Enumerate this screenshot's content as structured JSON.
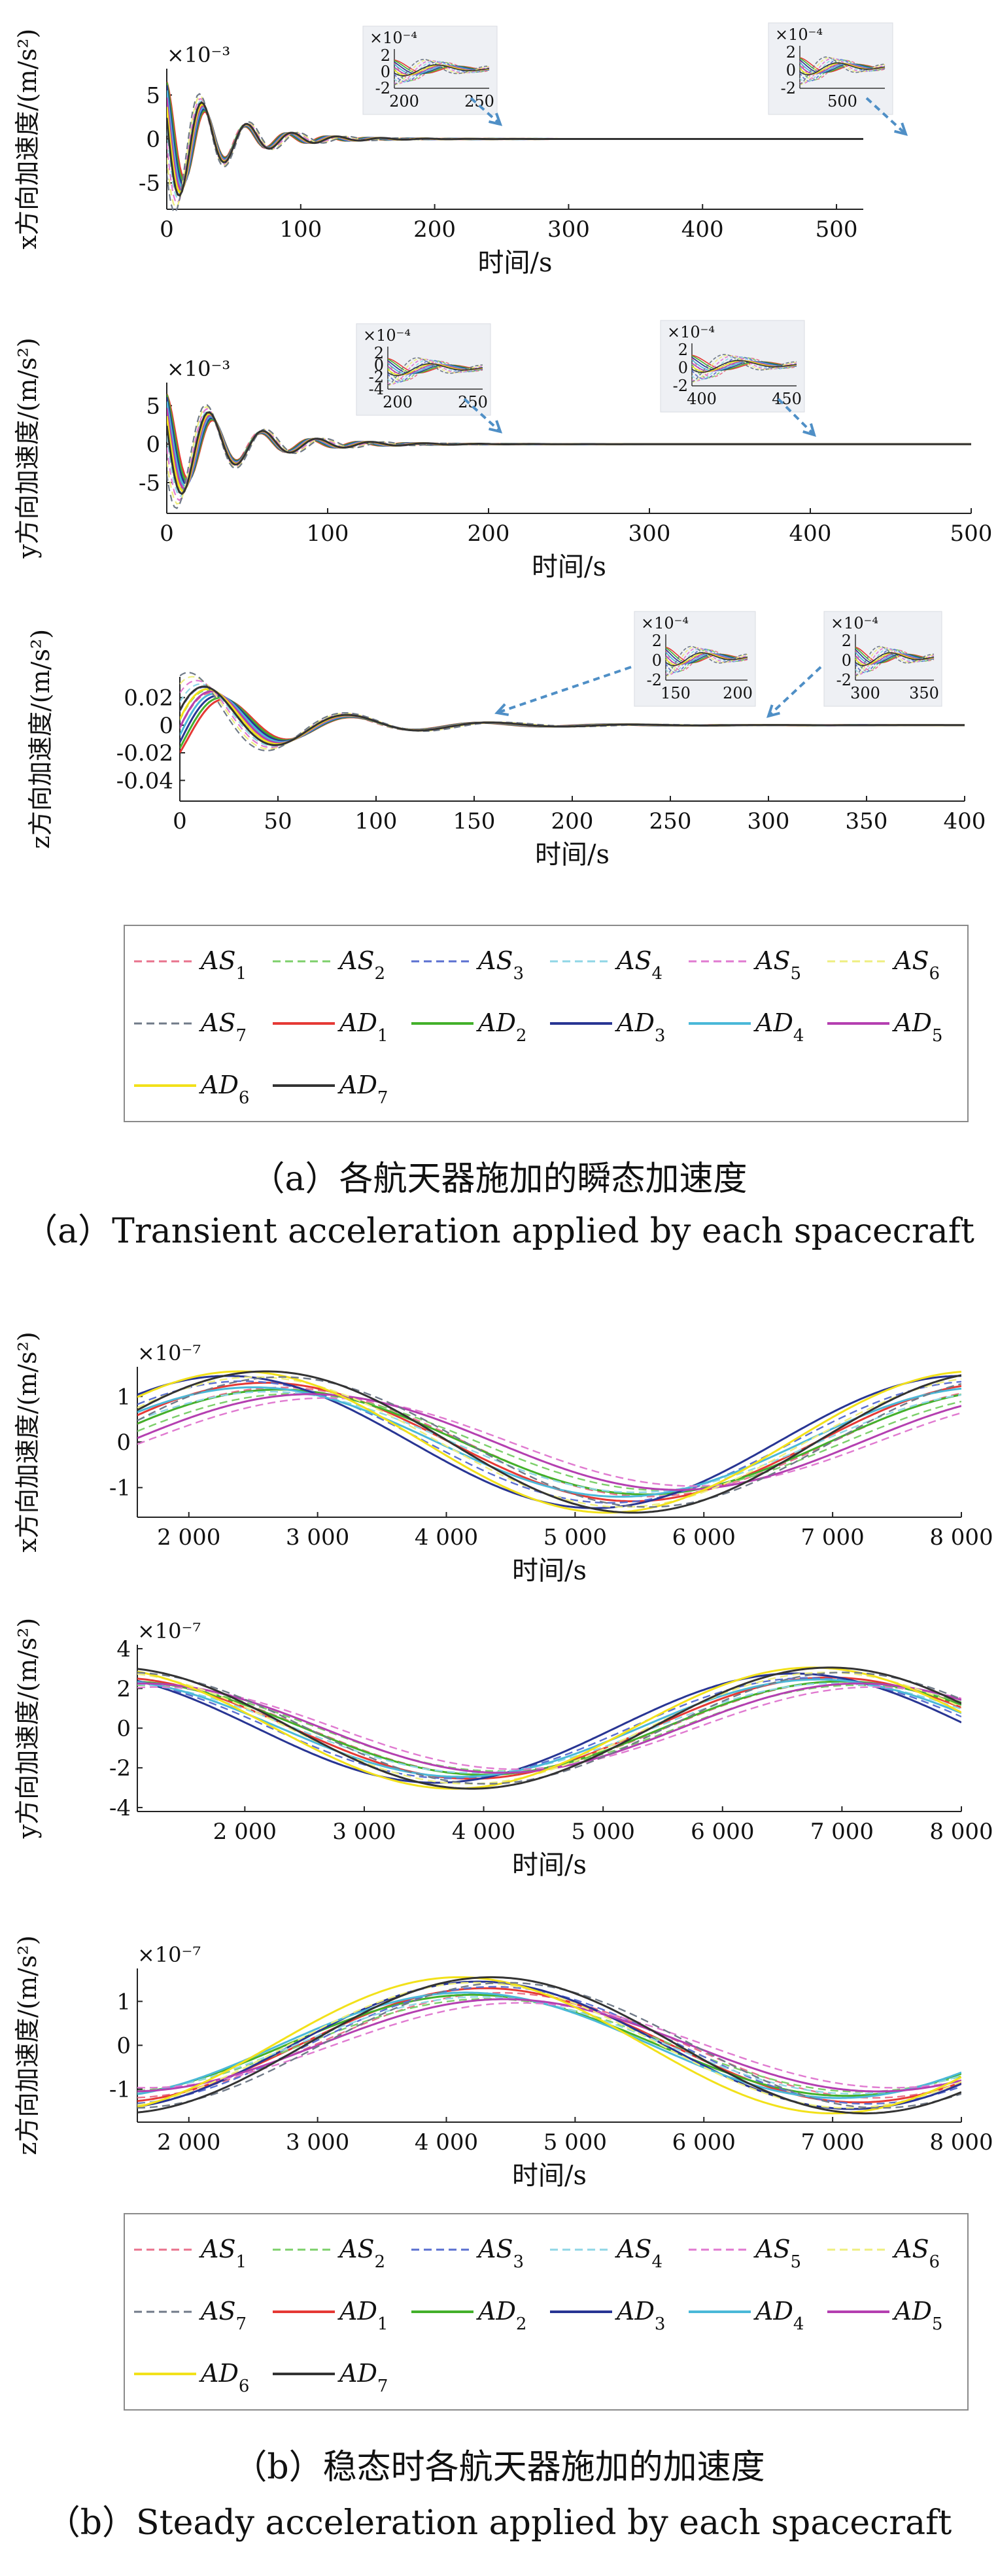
{
  "colors": {
    "AS1": "#e8728c",
    "AS2": "#7ccf6a",
    "AS3": "#5a6fd0",
    "AS4": "#8fd6e6",
    "AS5": "#e07ad0",
    "AS6": "#eeee80",
    "AS7": "#707a88",
    "AD1": "#e53935",
    "AD2": "#43b02a",
    "AD3": "#283593",
    "AD4": "#4ab8d8",
    "AD5": "#b43fb0",
    "AD6": "#f2e11a",
    "AD7": "#333333",
    "arrow": "#4f8fc6",
    "inset_bg": "#eef0f4"
  },
  "captions": {
    "a_zh": "（a）各航天器施加的瞬态加速度",
    "a_en": "（a）Transient acceleration applied by each spacecraft",
    "b_zh": "（b）稳态时各航天器施加的加速度",
    "b_en": "（b）Steady acceleration applied by each spacecraft"
  },
  "legend_labels": {
    "AS": "AS",
    "AD": "AD",
    "entries": [
      "1",
      "2",
      "3",
      "4",
      "5",
      "6",
      "7"
    ]
  },
  "chart_data": [
    {
      "id": "tx",
      "type": "line",
      "ylabel": "x方向加速度/(m/s²)",
      "xlabel": "时间/s",
      "exponent": "×10⁻³",
      "xlim": [
        0,
        520
      ],
      "ylim": [
        -8,
        8
      ],
      "xticks": [
        0,
        100,
        200,
        300,
        400,
        500
      ],
      "xtick_labels": [
        "0",
        "100",
        "200",
        "300",
        "400",
        "500"
      ],
      "yticks": [
        5,
        0,
        -5
      ],
      "ytick_labels": [
        "5",
        "0",
        "-5"
      ],
      "insets": [
        {
          "exponent": "×10⁻⁴",
          "xticks": [
            "200",
            "250"
          ],
          "yticks": [
            "2",
            "0",
            "-2"
          ]
        },
        {
          "exponent": "×10⁻⁴",
          "xticks": [
            "500"
          ],
          "yticks": [
            "2",
            "0",
            "-2"
          ]
        }
      ]
    },
    {
      "id": "ty",
      "type": "line",
      "ylabel": "y方向加速度/(m/s²)",
      "xlabel": "时间/s",
      "exponent": "×10⁻³",
      "xlim": [
        0,
        500
      ],
      "ylim": [
        -9,
        8
      ],
      "xticks": [
        0,
        100,
        200,
        300,
        400,
        500
      ],
      "xtick_labels": [
        "0",
        "100",
        "200",
        "300",
        "400",
        "500"
      ],
      "yticks": [
        5,
        0,
        -5
      ],
      "ytick_labels": [
        "5",
        "0",
        "-5"
      ],
      "insets": [
        {
          "exponent": "×10⁻⁴",
          "xticks": [
            "200",
            "250"
          ],
          "yticks": [
            "2",
            "0",
            "-2",
            "-4"
          ]
        },
        {
          "exponent": "×10⁻⁴",
          "xticks": [
            "400",
            "450"
          ],
          "yticks": [
            "2",
            "0",
            "-2"
          ]
        }
      ]
    },
    {
      "id": "tz",
      "type": "line",
      "ylabel": "z方向加速度/(m/s²)",
      "xlabel": "时间/s",
      "exponent": "",
      "xlim": [
        0,
        400
      ],
      "ylim": [
        -0.055,
        0.035
      ],
      "xticks": [
        0,
        50,
        100,
        150,
        200,
        250,
        300,
        350,
        400
      ],
      "xtick_labels": [
        "0",
        "50",
        "100",
        "150",
        "200",
        "250",
        "300",
        "350",
        "400"
      ],
      "yticks": [
        0.02,
        0,
        -0.02,
        -0.04
      ],
      "ytick_labels": [
        "0.02",
        "0",
        "-0.02",
        "-0.04"
      ],
      "insets": [
        {
          "exponent": "×10⁻⁴",
          "xticks": [
            "150",
            "200"
          ],
          "yticks": [
            "2",
            "0",
            "-2"
          ]
        },
        {
          "exponent": "×10⁻⁴",
          "xticks": [
            "300",
            "350"
          ],
          "yticks": [
            "2",
            "0",
            "-2"
          ]
        }
      ]
    },
    {
      "id": "sx",
      "type": "line",
      "ylabel": "x方向加速度/(m/s²)",
      "xlabel": "时间/s",
      "exponent": "×10⁻⁷",
      "xlim": [
        1600,
        8000
      ],
      "ylim": [
        -1.65,
        1.65
      ],
      "xticks": [
        2000,
        3000,
        4000,
        5000,
        6000,
        7000,
        8000
      ],
      "xtick_labels": [
        "2 000",
        "3 000",
        "4 000",
        "5 000",
        "6 000",
        "7 000",
        "8 000"
      ],
      "yticks": [
        1,
        0,
        -1
      ],
      "ytick_labels": [
        "1",
        "0",
        "-1"
      ],
      "wave": {
        "period": 5700,
        "series": [
          {
            "name": "AD1",
            "amp": 1.3,
            "peak": 2600
          },
          {
            "name": "AD2",
            "amp": 1.15,
            "peak": 2700
          },
          {
            "name": "AD3",
            "amp": 1.45,
            "peak": 2300
          },
          {
            "name": "AD4",
            "amp": 1.2,
            "peak": 2500
          },
          {
            "name": "AD5",
            "amp": 1.05,
            "peak": 2950
          },
          {
            "name": "AD6",
            "amp": 1.55,
            "peak": 2400
          },
          {
            "name": "AD7",
            "amp": 1.55,
            "peak": 2600
          }
        ]
      }
    },
    {
      "id": "sy",
      "type": "line",
      "ylabel": "y方向加速度/(m/s²)",
      "xlabel": "时间/s",
      "exponent": "×10⁻⁷",
      "xlim": [
        1100,
        8000
      ],
      "ylim": [
        -4.2,
        4.2
      ],
      "xticks": [
        2000,
        3000,
        4000,
        5000,
        6000,
        7000,
        8000
      ],
      "xtick_labels": [
        "2 000",
        "3 000",
        "4 000",
        "5 000",
        "6 000",
        "7 000",
        "8 000"
      ],
      "yticks": [
        4,
        2,
        0,
        -2,
        -4
      ],
      "ytick_labels": [
        "4",
        "2",
        "0",
        "-2",
        "-4"
      ],
      "wave": {
        "period": 6000,
        "series": [
          {
            "name": "AD1",
            "amp": 2.55,
            "peak": 6900
          },
          {
            "name": "AD2",
            "amp": 2.35,
            "peak": 7000
          },
          {
            "name": "AD3",
            "amp": 2.75,
            "peak": 6600
          },
          {
            "name": "AD4",
            "amp": 2.45,
            "peak": 6800
          },
          {
            "name": "AD5",
            "amp": 2.25,
            "peak": 7150
          },
          {
            "name": "AD6",
            "amp": 3.05,
            "peak": 6750
          },
          {
            "name": "AD7",
            "amp": 3.05,
            "peak": 6900
          }
        ]
      }
    },
    {
      "id": "sz",
      "type": "line",
      "ylabel": "z方向加速度/(m/s²)",
      "xlabel": "时间/s",
      "exponent": "×10⁻⁷",
      "xlim": [
        1600,
        8000
      ],
      "ylim": [
        -1.75,
        1.75
      ],
      "xticks": [
        2000,
        3000,
        4000,
        5000,
        6000,
        7000,
        8000
      ],
      "xtick_labels": [
        "2 000",
        "3 000",
        "4 000",
        "5 000",
        "6 000",
        "7 000",
        "8 000"
      ],
      "yticks": [
        1,
        0,
        -1
      ],
      "ytick_labels": [
        "1",
        "0",
        "-1"
      ],
      "wave": {
        "period": 5800,
        "series": [
          {
            "name": "AD1",
            "amp": 1.3,
            "peak": 4300
          },
          {
            "name": "AD2",
            "amp": 1.15,
            "peak": 4200
          },
          {
            "name": "AD3",
            "amp": 1.45,
            "peak": 4250
          },
          {
            "name": "AD4",
            "amp": 1.2,
            "peak": 4150
          },
          {
            "name": "AD5",
            "amp": 1.05,
            "peak": 4450
          },
          {
            "name": "AD6",
            "amp": 1.55,
            "peak": 4100
          },
          {
            "name": "AD7",
            "amp": 1.55,
            "peak": 4350
          }
        ]
      }
    }
  ]
}
